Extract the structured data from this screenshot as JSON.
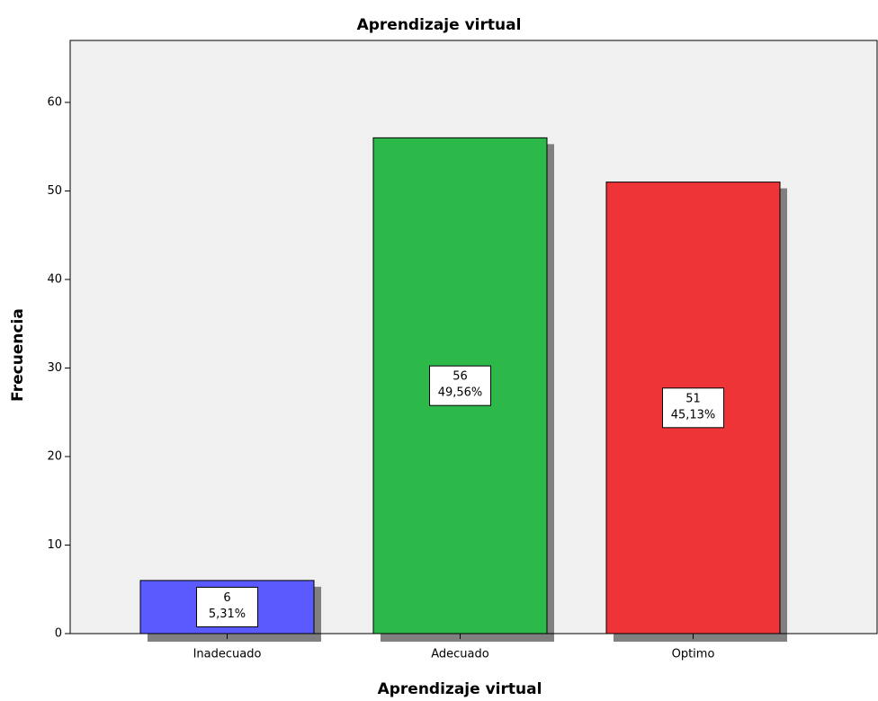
{
  "chart_data": {
    "type": "bar",
    "title": "Aprendizaje virtual",
    "x_label": "Aprendizaje virtual",
    "y_label": "Frecuencia",
    "categories": [
      "Inadecuado",
      "Adecuado",
      "Optimo"
    ],
    "values": [
      6,
      56,
      51
    ],
    "percentages": [
      5.31,
      49.56,
      45.13
    ],
    "percentage_labels": [
      "5,31%",
      "49,56%",
      "45,13%"
    ],
    "colors": [
      "#5a5aff",
      "#2db84a",
      "#ef3438"
    ],
    "ylim": [
      0,
      67
    ],
    "yticks": [
      0,
      10,
      20,
      30,
      40,
      50,
      60
    ],
    "grid": false
  }
}
